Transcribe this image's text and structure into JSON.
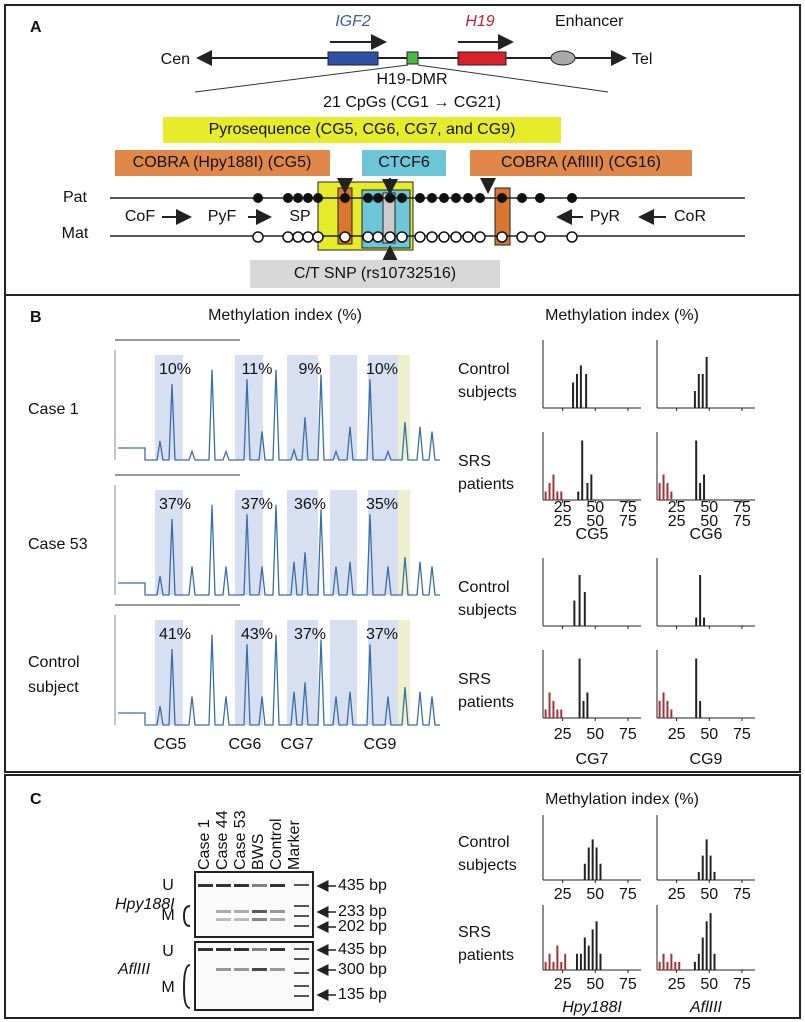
{
  "panel_a": {
    "label": "A",
    "igf2": "IGF2",
    "h19": "H19",
    "enhancer": "Enhancer",
    "cen": "Cen",
    "tel": "Tel",
    "dmr": "H19-DMR",
    "cpgs": "21 CpGs (CG1 → CG21)",
    "pyro": "Pyrosequence (CG5, CG6, CG7, and CG9)",
    "cobra1": "COBRA (Hpy188I) (CG5)",
    "ctcf": "CTCF6",
    "cobra2": "COBRA (AflIII) (CG16)",
    "pat": "Pat",
    "mat": "Mat",
    "cof": "CoF",
    "pyf": "PyF",
    "sp": "SP",
    "pyr": "PyR",
    "cor": "CoR",
    "snp": "C/T SNP (rs10732516)"
  },
  "histogram_axis": {
    "xlim": [
      10,
      85
    ],
    "ylim": [
      0,
      8
    ],
    "xticks": [
      25,
      50,
      75
    ]
  },
  "panel_b": {
    "label": "B",
    "title_left": "Methylation index (%)",
    "title_right": "Methylation index (%)",
    "cases": [
      {
        "name": [
          "Case 1"
        ],
        "pct": [
          "10%",
          "11%",
          "9%",
          "10%"
        ]
      },
      {
        "name": [
          "Case 53"
        ],
        "pct": [
          "37%",
          "37%",
          "36%",
          "35%"
        ]
      },
      {
        "name": [
          "Control",
          "subject"
        ],
        "pct": [
          "41%",
          "43%",
          "37%",
          "37%"
        ]
      }
    ],
    "sites": [
      "CG5",
      "CG6",
      "CG7",
      "CG9"
    ],
    "control_label": [
      "Control",
      "subjects"
    ],
    "srs_label": [
      "SRS",
      "patients"
    ],
    "histograms": [
      {
        "groups": [
          {
            "color": "#222",
            "x": [
              33,
              36,
              39,
              43
            ],
            "values": [
              3,
              4,
              5,
              4
            ]
          }
        ]
      },
      {
        "groups": [
          {
            "color": "#222",
            "x": [
              39,
              42,
              45,
              48
            ],
            "values": [
              2,
              4,
              4,
              6
            ]
          }
        ]
      },
      {
        "groups": [
          {
            "color": "#a83232",
            "x": [
              12,
              15,
              18,
              21,
              24
            ],
            "values": [
              1,
              2,
              3,
              1,
              1
            ]
          },
          {
            "color": "#222",
            "x": [
              37,
              40,
              44,
              47
            ],
            "values": [
              1,
              7,
              2,
              3
            ]
          }
        ]
      },
      {
        "groups": [
          {
            "color": "#a83232",
            "x": [
              12,
              15,
              18,
              21
            ],
            "values": [
              2,
              3,
              2,
              1
            ]
          },
          {
            "color": "#222",
            "x": [
              40,
              43,
              46
            ],
            "values": [
              7,
              2,
              3
            ]
          }
        ]
      },
      {
        "groups": [
          {
            "color": "#222",
            "x": [
              34,
              38,
              42
            ],
            "values": [
              3,
              6,
              4
            ]
          }
        ]
      },
      {
        "groups": [
          {
            "color": "#222",
            "x": [
              40,
              43,
              46
            ],
            "values": [
              1,
              6,
              1
            ]
          }
        ]
      },
      {
        "groups": [
          {
            "color": "#a83232",
            "x": [
              12,
              15,
              18,
              21,
              24
            ],
            "values": [
              1,
              3,
              2,
              1,
              1
            ]
          },
          {
            "color": "#222",
            "x": [
              38,
              41,
              44
            ],
            "values": [
              7,
              2,
              3
            ]
          }
        ]
      },
      {
        "groups": [
          {
            "color": "#a83232",
            "x": [
              12,
              15,
              18,
              21
            ],
            "values": [
              2,
              3,
              2,
              1
            ]
          },
          {
            "color": "#222",
            "x": [
              40,
              43
            ],
            "values": [
              7,
              2
            ]
          }
        ]
      }
    ]
  },
  "panel_c": {
    "label": "C",
    "title": "Methylation index (%)",
    "lanes": [
      "Case 1",
      "Case 44",
      "Case 53",
      "BWS",
      "Control",
      "Marker"
    ],
    "enzymes": [
      "Hpy188I",
      "AflIII"
    ],
    "u": "U",
    "m": "M",
    "sizes": [
      "435 bp",
      "233 bp",
      "202 bp",
      "435 bp",
      "300 bp",
      "135 bp"
    ],
    "control_label": [
      "Control",
      "subjects"
    ],
    "srs_label": [
      "SRS",
      "patients"
    ],
    "histograms": [
      {
        "groups": [
          {
            "color": "#222",
            "x": [
              42,
              45,
              48,
              51,
              54
            ],
            "values": [
              2,
              4,
              5,
              4,
              2
            ]
          }
        ]
      },
      {
        "groups": [
          {
            "color": "#222",
            "x": [
              42,
              45,
              48,
              51,
              54
            ],
            "values": [
              1,
              3,
              5,
              3,
              1
            ]
          }
        ]
      },
      {
        "groups": [
          {
            "color": "#a83232",
            "x": [
              12,
              15,
              18,
              21,
              24,
              27
            ],
            "values": [
              1,
              2,
              1,
              3,
              1,
              2
            ]
          },
          {
            "color": "#222",
            "x": [
              36,
              39,
              42,
              45,
              48,
              51,
              54
            ],
            "values": [
              2,
              2,
              4,
              3,
              5,
              6,
              2
            ]
          }
        ]
      },
      {
        "groups": [
          {
            "color": "#a83232",
            "x": [
              12,
              15,
              18,
              21,
              24,
              27
            ],
            "values": [
              1,
              2,
              1,
              2,
              1,
              1
            ]
          },
          {
            "color": "#222",
            "x": [
              39,
              42,
              45,
              48,
              51,
              54
            ],
            "values": [
              1,
              2,
              4,
              6,
              7,
              2
            ]
          }
        ]
      }
    ]
  }
}
